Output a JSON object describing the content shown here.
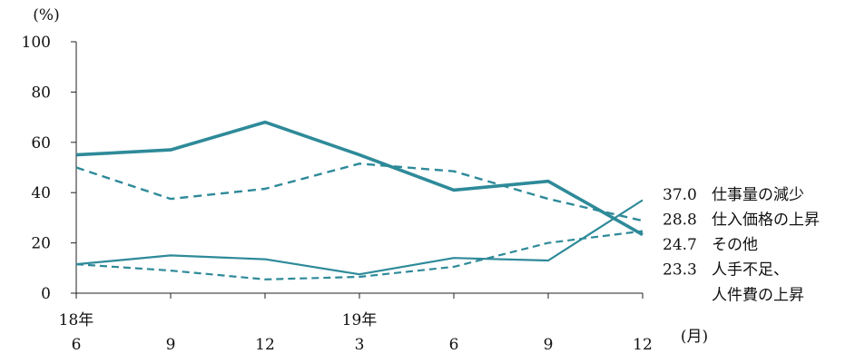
{
  "chart_data": {
    "type": "line",
    "y_unit_label": "(%)",
    "x_unit_label": "(月)",
    "ylim": [
      0,
      100
    ],
    "y_ticks": [
      0,
      20,
      40,
      60,
      80,
      100
    ],
    "x_tick_labels": [
      "6",
      "9",
      "12",
      "3",
      "6",
      "9",
      "12"
    ],
    "year_labels": [
      {
        "at_index": 0,
        "label": "18年"
      },
      {
        "at_index": 3,
        "label": "19年"
      }
    ],
    "series": [
      {
        "name": "仕事量の減少",
        "value_label": "37.0",
        "style": "thin-solid",
        "color": "#2e8a99",
        "values": [
          11.5,
          15.0,
          13.5,
          7.5,
          14.0,
          13.0,
          37.0
        ]
      },
      {
        "name": "仕入価格の上昇",
        "value_label": "28.8",
        "style": "thick-dashed",
        "color": "#2e8a99",
        "values": [
          50.0,
          37.5,
          41.5,
          51.5,
          48.5,
          37.5,
          28.8
        ]
      },
      {
        "name": "その他",
        "value_label": "24.7",
        "style": "thin-dashed",
        "color": "#2e8a99",
        "values": [
          11.5,
          9.0,
          5.5,
          6.5,
          10.5,
          20.0,
          24.7
        ]
      },
      {
        "name": "人手不足、\n人件費の上昇",
        "value_label": "23.3",
        "style": "thick-solid",
        "color": "#2e8a99",
        "values": [
          55.0,
          57.0,
          68.0,
          55.0,
          41.0,
          44.5,
          23.3
        ]
      }
    ]
  }
}
